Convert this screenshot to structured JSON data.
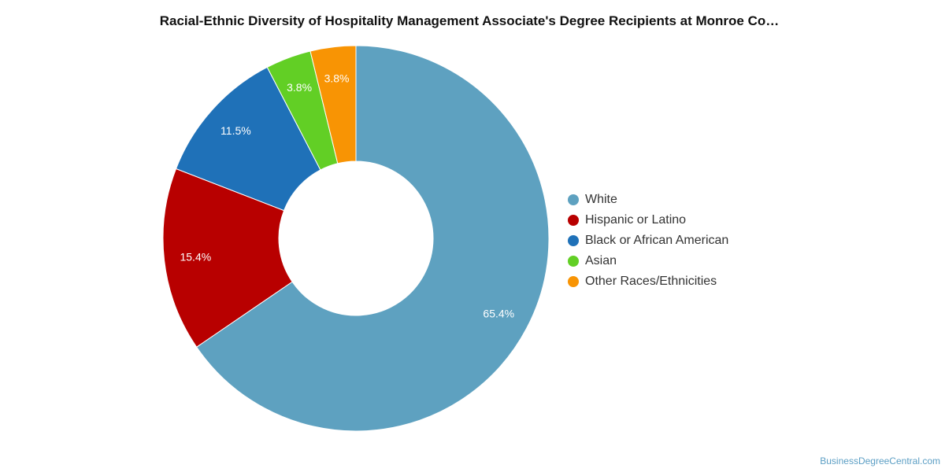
{
  "chart_data": {
    "type": "pie",
    "title": "Racial-Ethnic Diversity of Hospitality Management Associate's Degree Recipients at Monroe Co…",
    "donut": true,
    "categories": [
      "White",
      "Hispanic or Latino",
      "Black or African American",
      "Asian",
      "Other Races/Ethnicities"
    ],
    "values": [
      65.4,
      15.4,
      11.5,
      3.8,
      3.8
    ],
    "labels": [
      "65.4%",
      "15.4%",
      "11.5%",
      "3.8%",
      "3.8%"
    ],
    "colors": [
      "#5ea1c0",
      "#b80000",
      "#1f71b8",
      "#62cf25",
      "#f89404"
    ],
    "legend_position": "right"
  },
  "footer": {
    "source": "BusinessDegreeCentral.com"
  }
}
